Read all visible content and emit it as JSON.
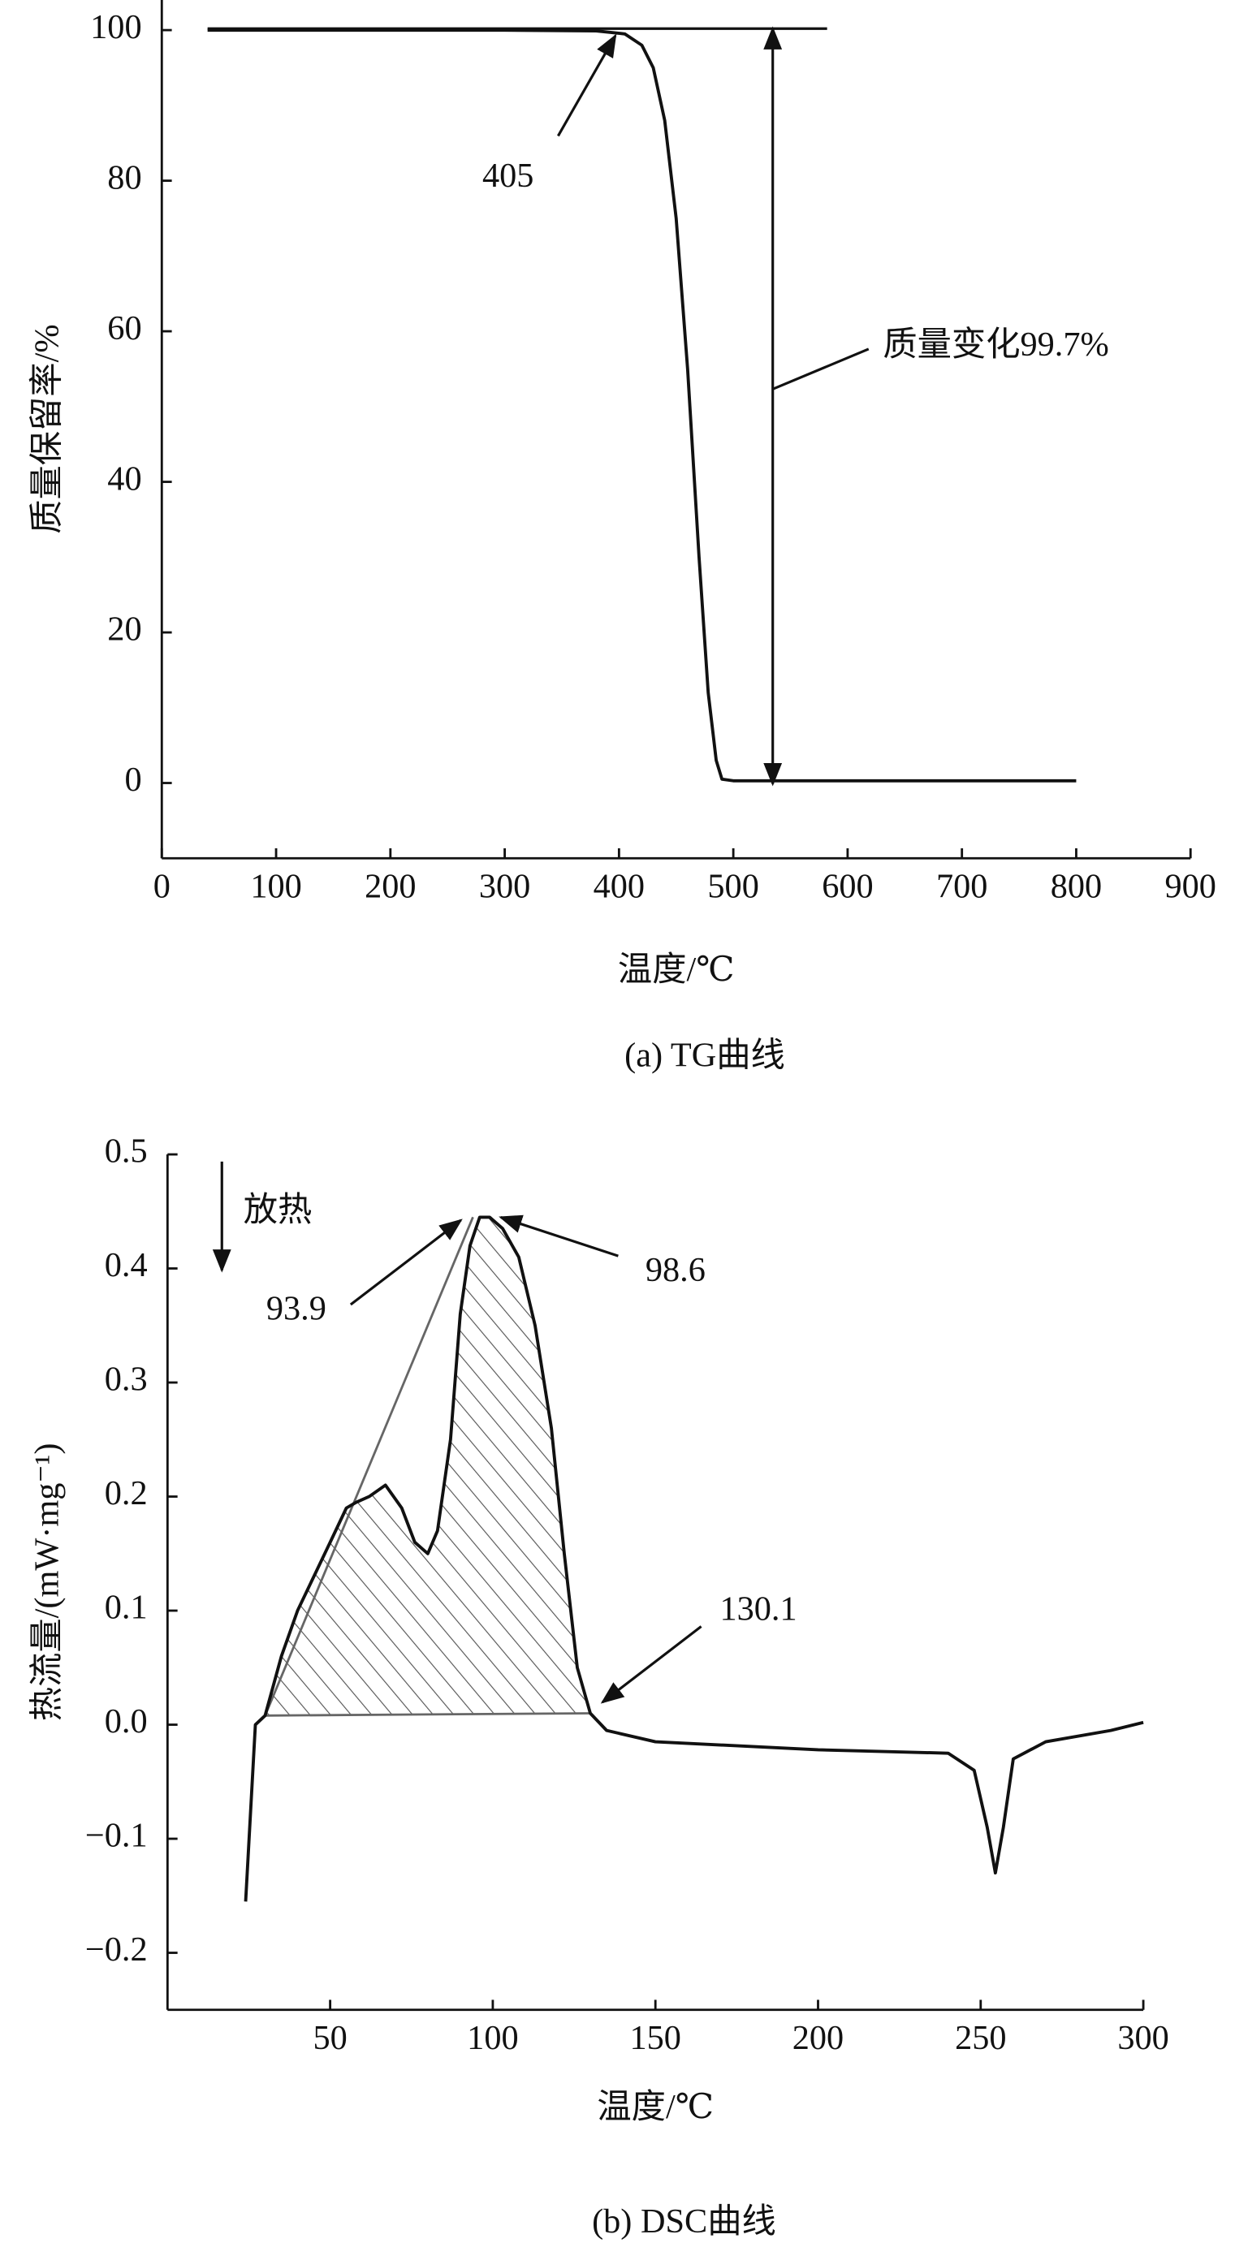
{
  "chart_data": [
    {
      "type": "line",
      "title": "(a) TG曲线",
      "x_label": "温度/℃",
      "y_label": "质量保留率/%",
      "xlim": [
        0,
        900
      ],
      "xticks": [
        0,
        100,
        200,
        300,
        400,
        500,
        600,
        700,
        800,
        900
      ],
      "ylim": [
        -10,
        104
      ],
      "yticks": [
        0,
        20,
        40,
        60,
        80,
        100
      ],
      "series": [
        {
          "color": "#111111",
          "x": [
            40,
            300,
            380,
            405,
            420,
            430,
            440,
            450,
            460,
            470,
            478,
            485,
            490,
            500,
            800
          ],
          "values": [
            100,
            100,
            99.9,
            99.5,
            98,
            95,
            88,
            75,
            55,
            30,
            12,
            3,
            0.5,
            0.3,
            0.3
          ]
        }
      ],
      "annotations": [
        {
          "text": "405"
        },
        {
          "text": "质量变化99.7%"
        }
      ]
    },
    {
      "type": "line",
      "title": "(b) DSC曲线",
      "x_label": "温度/℃",
      "y_label": "热流量/(mW·mg⁻¹)",
      "xlim": [
        0,
        300
      ],
      "xticks": [
        50,
        100,
        150,
        200,
        250,
        300
      ],
      "ylim": [
        -0.25,
        0.5
      ],
      "yticks": [
        {
          "value": -0.2,
          "label": "−0.2"
        },
        {
          "value": -0.1,
          "label": "−0.1"
        },
        {
          "value": 0,
          "label": "0.0"
        },
        0.1,
        0.2,
        0.3,
        0.4,
        0.5
      ],
      "series": [
        {
          "color": "#111111",
          "x": [
            24,
            27,
            30,
            35,
            40,
            45,
            50,
            55,
            58,
            62,
            67,
            72,
            76,
            80,
            83,
            87,
            90,
            93,
            96,
            99,
            103,
            108,
            113,
            118,
            122,
            126,
            130,
            135,
            150,
            200,
            240,
            248,
            252,
            254.5,
            257,
            260,
            270,
            290,
            300
          ],
          "values": [
            -0.155,
            0,
            0.008,
            0.06,
            0.1,
            0.13,
            0.16,
            0.19,
            0.195,
            0.2,
            0.21,
            0.19,
            0.16,
            0.15,
            0.17,
            0.25,
            0.36,
            0.42,
            0.445,
            0.445,
            0.435,
            0.41,
            0.35,
            0.26,
            0.15,
            0.05,
            0.01,
            -0.005,
            -0.015,
            -0.022,
            -0.025,
            -0.04,
            -0.09,
            -0.13,
            -0.09,
            -0.03,
            -0.015,
            -0.005,
            0.002
          ]
        }
      ],
      "annotations": [
        {
          "text": "放热"
        },
        {
          "text": "93.9"
        },
        {
          "text": "98.6"
        },
        {
          "text": "130.1"
        }
      ]
    }
  ]
}
